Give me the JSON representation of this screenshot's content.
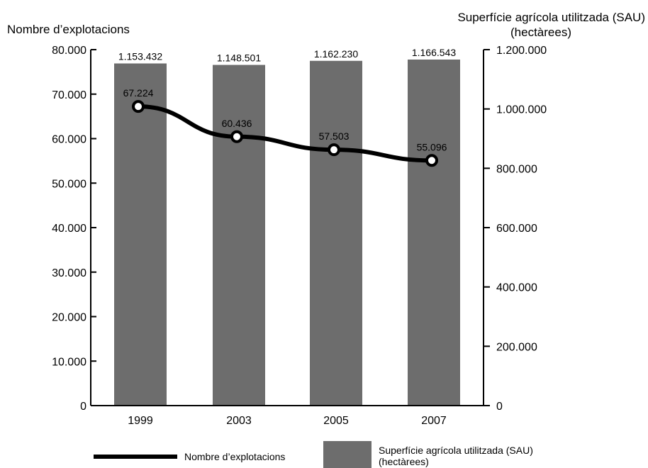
{
  "chart_data": {
    "type": "bar+line",
    "categories": [
      "1999",
      "2003",
      "2005",
      "2007"
    ],
    "series": [
      {
        "name": "Superfície agrícola utilitzada (SAU) (hectàrees)",
        "type": "bar",
        "axis": "right",
        "values": [
          1153432,
          1148501,
          1162230,
          1166543
        ],
        "labels": [
          "1.153.432",
          "1.148.501",
          "1.162.230",
          "1.166.543"
        ]
      },
      {
        "name": "Nombre d’explotacions",
        "type": "line",
        "axis": "left",
        "values": [
          67224,
          60436,
          57503,
          55096
        ],
        "labels": [
          "67.224",
          "60.436",
          "57.503",
          "55.096"
        ]
      }
    ],
    "left_axis": {
      "title": "Nombre d’explotacions",
      "ylim": [
        0,
        80000
      ],
      "ticks": [
        0,
        10000,
        20000,
        30000,
        40000,
        50000,
        60000,
        70000,
        80000
      ],
      "tick_labels": [
        "0",
        "10.000",
        "20.000",
        "30.000",
        "40.000",
        "50.000",
        "60.000",
        "70.000",
        "80.000"
      ]
    },
    "right_axis": {
      "title_line1": "Superfície agrícola utilitzada (SAU)",
      "title_line2": "(hectàrees)",
      "ylim": [
        0,
        1200000
      ],
      "ticks": [
        0,
        200000,
        400000,
        600000,
        800000,
        1000000,
        1200000
      ],
      "tick_labels": [
        "0",
        "200.000",
        "400.000",
        "600.000",
        "800.000",
        "1.000.000",
        "1.200.000"
      ]
    },
    "legend": {
      "position": "bottom",
      "line_label": "Nombre d’explotacions",
      "bar_label_line1": "Superfície agrícola utilitzada (SAU)",
      "bar_label_line2": "(hectàrees)"
    },
    "grid": false
  },
  "colors": {
    "bar": "#6d6d6d",
    "line": "#000000",
    "marker_fill": "#ffffff",
    "axis": "#000000"
  }
}
